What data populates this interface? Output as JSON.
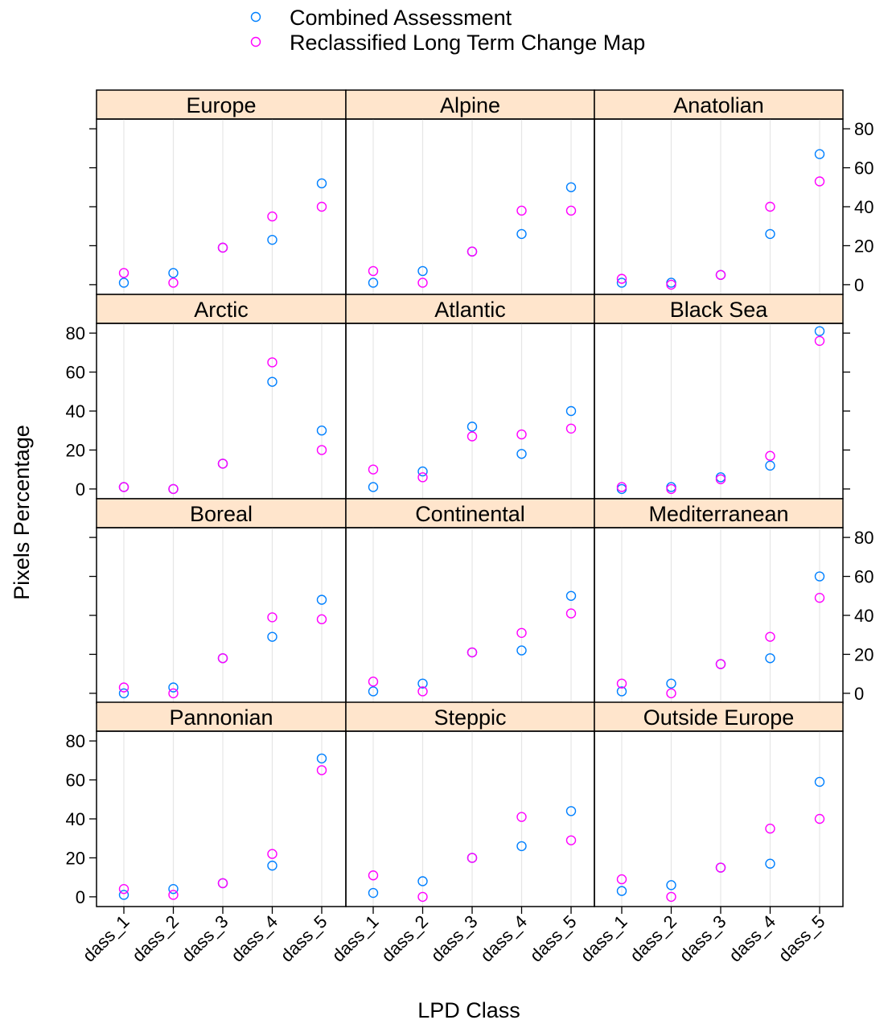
{
  "chart_data": {
    "type": "scatter",
    "layout": "3x4 trellis panels",
    "xlabel": "LPD Class",
    "ylabel": "Pixels Percentage",
    "categories": [
      "dass_1",
      "dass_2",
      "dass_3",
      "dass_4",
      "dass_5"
    ],
    "ylim": [
      -5,
      85
    ],
    "yticks": [
      0,
      20,
      40,
      60,
      80
    ],
    "legend": {
      "placement": "top",
      "items": [
        {
          "name": "Combined Assessment",
          "color": "#0080ff"
        },
        {
          "name": "Reclassified Long Term Change Map",
          "color": "#ff00ff"
        }
      ]
    },
    "strip_color": "#ffe5cc",
    "panels": [
      {
        "name": "Europe",
        "combined": [
          1,
          6,
          19,
          23,
          52
        ],
        "reclassified": [
          6,
          1,
          19,
          35,
          40
        ]
      },
      {
        "name": "Alpine",
        "combined": [
          1,
          7,
          17,
          26,
          50
        ],
        "reclassified": [
          7,
          1,
          17,
          38,
          38
        ]
      },
      {
        "name": "Anatolian",
        "combined": [
          1,
          1,
          5,
          26,
          67
        ],
        "reclassified": [
          3,
          0,
          5,
          40,
          53
        ]
      },
      {
        "name": "Arctic",
        "combined": [
          1,
          0,
          13,
          55,
          30
        ],
        "reclassified": [
          1,
          0,
          13,
          65,
          20
        ]
      },
      {
        "name": "Atlantic",
        "combined": [
          1,
          9,
          32,
          18,
          40
        ],
        "reclassified": [
          10,
          6,
          27,
          28,
          31
        ]
      },
      {
        "name": "Black Sea",
        "combined": [
          0,
          1,
          6,
          12,
          81
        ],
        "reclassified": [
          1,
          0,
          5,
          17,
          76
        ]
      },
      {
        "name": "Boreal",
        "combined": [
          0,
          3,
          18,
          29,
          48
        ],
        "reclassified": [
          3,
          0,
          18,
          39,
          38
        ]
      },
      {
        "name": "Continental",
        "combined": [
          1,
          5,
          21,
          22,
          50
        ],
        "reclassified": [
          6,
          1,
          21,
          31,
          41
        ]
      },
      {
        "name": "Mediterranean",
        "combined": [
          1,
          5,
          15,
          18,
          60
        ],
        "reclassified": [
          5,
          0,
          15,
          29,
          49
        ]
      },
      {
        "name": "Pannonian",
        "combined": [
          1,
          4,
          7,
          16,
          71
        ],
        "reclassified": [
          4,
          1,
          7,
          22,
          65
        ]
      },
      {
        "name": "Steppic",
        "combined": [
          2,
          8,
          20,
          26,
          44
        ],
        "reclassified": [
          11,
          0,
          20,
          41,
          29
        ]
      },
      {
        "name": "Outside Europe",
        "combined": [
          3,
          6,
          15,
          17,
          59
        ],
        "reclassified": [
          9,
          0,
          15,
          35,
          40
        ]
      }
    ]
  }
}
